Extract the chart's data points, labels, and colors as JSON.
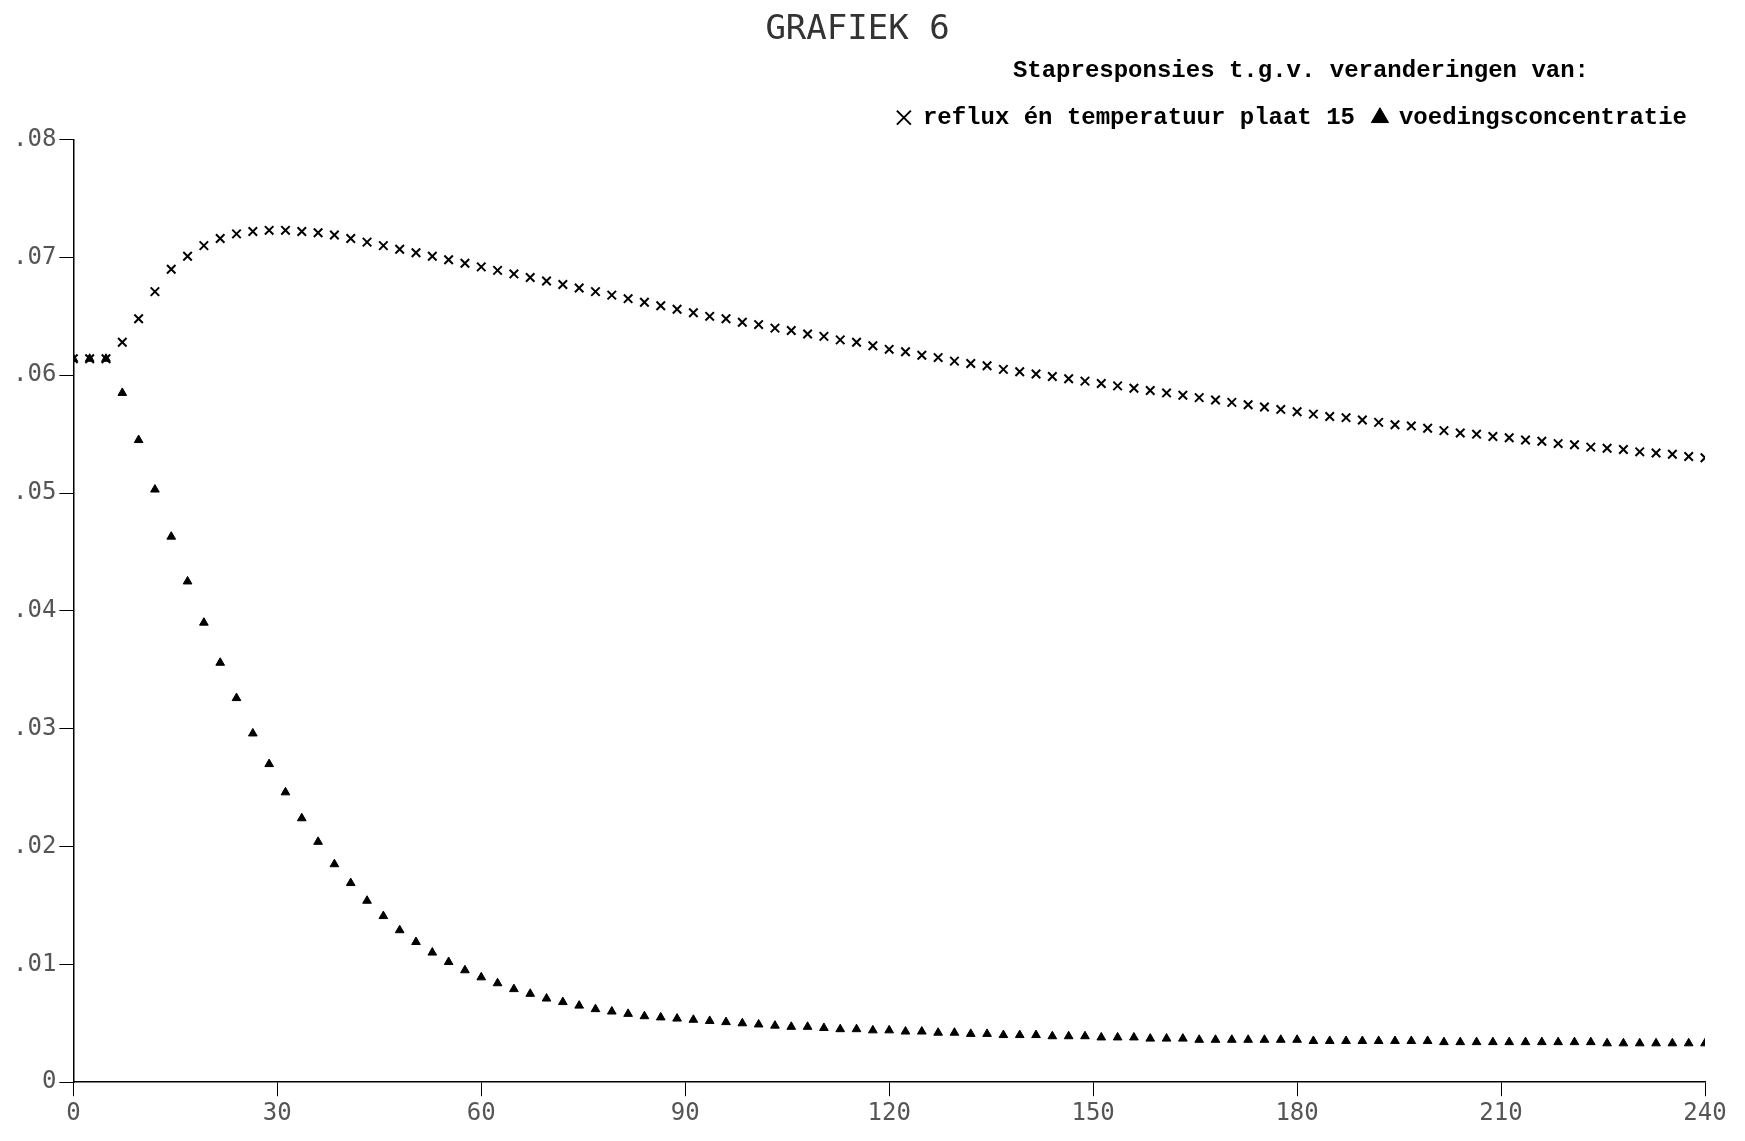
{
  "chart_data": {
    "type": "scatter",
    "title": "GRAFIEK 6",
    "legend_title": "Stapresponsies t.g.v. veranderingen van:",
    "legend": "top right",
    "grid": false,
    "xlim": [
      0,
      240
    ],
    "xticks": [
      0,
      30,
      60,
      90,
      120,
      150,
      180,
      210,
      240
    ],
    "ylim": [
      0,
      0.08
    ],
    "yticks": [
      0,
      {
        "value": 0.01,
        "label": ".01"
      },
      {
        "value": 0.02,
        "label": ".02"
      },
      {
        "value": 0.03,
        "label": ".03"
      },
      {
        "value": 0.04,
        "label": ".04"
      },
      {
        "value": 0.05,
        "label": ".05"
      },
      {
        "value": 0.06,
        "label": ".06"
      },
      {
        "value": 0.07,
        "label": ".07"
      },
      {
        "value": 0.08,
        "label": ".08"
      }
    ],
    "x": [
      0,
      2.4,
      4.8,
      7.2,
      9.6,
      12,
      14.4,
      16.8,
      19.2,
      21.6,
      24,
      26.4,
      28.8,
      31.2,
      33.6,
      36,
      38.4,
      40.8,
      43.2,
      45.6,
      48,
      50.4,
      52.8,
      55.2,
      57.6,
      60,
      62.4,
      64.8,
      67.2,
      69.6,
      72,
      74.4,
      76.8,
      79.2,
      81.6,
      84,
      86.4,
      88.8,
      91.2,
      93.6,
      96,
      98.4,
      100.8,
      103.2,
      105.6,
      108,
      110.4,
      112.8,
      115.2,
      117.6,
      120,
      122.4,
      124.8,
      127.2,
      129.6,
      132,
      134.4,
      136.8,
      139.2,
      141.6,
      144,
      146.4,
      148.8,
      151.2,
      153.6,
      156,
      158.4,
      160.8,
      163.2,
      165.6,
      168,
      170.4,
      172.8,
      175.2,
      177.6,
      180,
      182.4,
      184.8,
      187.2,
      189.6,
      192,
      194.4,
      196.8,
      199.2,
      201.6,
      204,
      206.4,
      208.8,
      211.2,
      213.6,
      216,
      218.4,
      220.8,
      223.2,
      225.6,
      228,
      230.4,
      232.8,
      235.2,
      237.6,
      240
    ],
    "series": [
      {
        "name": "reflux én temperatuur plaat 15",
        "color": "#000000",
        "marker": "cross",
        "values": [
          0.0614,
          0.0614,
          0.0614,
          0.0628,
          0.0648,
          0.0671,
          0.069,
          0.0701,
          0.071,
          0.0716,
          0.072,
          0.0722,
          0.0723,
          0.0723,
          0.0722,
          0.0721,
          0.0719,
          0.0716,
          0.0713,
          0.071,
          0.0707,
          0.0704,
          0.0701,
          0.0698,
          0.0695,
          0.0692,
          0.0689,
          0.0686,
          0.0683,
          0.068,
          0.0677,
          0.0674,
          0.0671,
          0.0668,
          0.0665,
          0.0662,
          0.0659,
          0.0656,
          0.0653,
          0.065,
          0.0648,
          0.0645,
          0.0643,
          0.064,
          0.0638,
          0.0635,
          0.0633,
          0.063,
          0.0628,
          0.0625,
          0.0622,
          0.062,
          0.0617,
          0.0615,
          0.0612,
          0.061,
          0.0608,
          0.0605,
          0.0603,
          0.0601,
          0.0599,
          0.0597,
          0.0595,
          0.0593,
          0.0591,
          0.0589,
          0.0587,
          0.0585,
          0.0583,
          0.0581,
          0.0579,
          0.0577,
          0.0575,
          0.0573,
          0.0571,
          0.0569,
          0.0567,
          0.0565,
          0.0564,
          0.0562,
          0.056,
          0.0558,
          0.0557,
          0.0555,
          0.0553,
          0.0551,
          0.055,
          0.0548,
          0.0547,
          0.0545,
          0.0544,
          0.0542,
          0.0541,
          0.0539,
          0.0538,
          0.0537,
          0.0535,
          0.0534,
          0.0533,
          0.0531,
          0.053
        ]
      },
      {
        "name": "voedingsconcentratie",
        "color": "#000000",
        "marker": "triangle",
        "values": [
          0.0614,
          0.0614,
          0.0614,
          0.0585,
          0.0545,
          0.0503,
          0.0463,
          0.0425,
          0.039,
          0.0356,
          0.0326,
          0.0296,
          0.027,
          0.0246,
          0.0224,
          0.0204,
          0.0185,
          0.0169,
          0.0154,
          0.0141,
          0.0129,
          0.0119,
          0.011,
          0.0102,
          0.0095,
          0.0089,
          0.0084,
          0.0079,
          0.0075,
          0.0071,
          0.0068,
          0.0065,
          0.0062,
          0.006,
          0.0058,
          0.0056,
          0.0055,
          0.0054,
          0.0053,
          0.0052,
          0.0051,
          0.005,
          0.0049,
          0.0048,
          0.0047,
          0.0047,
          0.0046,
          0.0045,
          0.0045,
          0.0044,
          0.0044,
          0.0043,
          0.0043,
          0.0042,
          0.0042,
          0.0041,
          0.0041,
          0.004,
          0.004,
          0.004,
          0.0039,
          0.0039,
          0.0039,
          0.0038,
          0.0038,
          0.0038,
          0.0037,
          0.0037,
          0.0037,
          0.0036,
          0.0036,
          0.0036,
          0.0036,
          0.0036,
          0.0036,
          0.0036,
          0.0035,
          0.0035,
          0.0035,
          0.0035,
          0.0035,
          0.0035,
          0.0035,
          0.0035,
          0.0034,
          0.0034,
          0.0034,
          0.0034,
          0.0034,
          0.0034,
          0.0034,
          0.0034,
          0.0034,
          0.0034,
          0.0033,
          0.0033,
          0.0033,
          0.0033,
          0.0033,
          0.0033,
          0.0033
        ]
      }
    ]
  }
}
